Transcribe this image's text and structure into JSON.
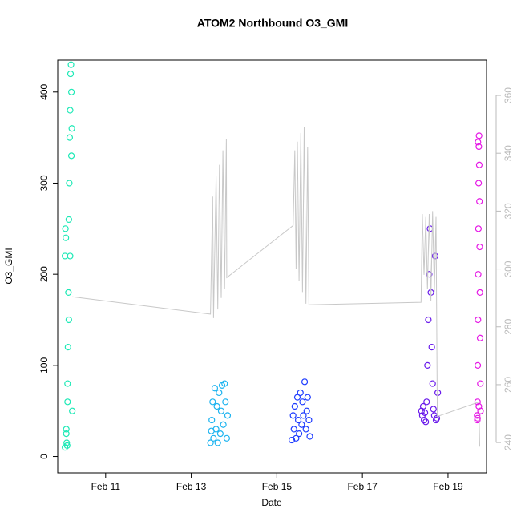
{
  "chart_data": {
    "type": "scatter",
    "title": "ATOM2 Northbound O3_GMI",
    "xlabel": "Date",
    "ylabel": "O3_GMI",
    "xlim": [
      9.88,
      19.9
    ],
    "xticks": [
      {
        "value": 11,
        "label": "Feb 11"
      },
      {
        "value": 13,
        "label": "Feb 13"
      },
      {
        "value": 15,
        "label": "Feb 15"
      },
      {
        "value": 17,
        "label": "Feb 17"
      },
      {
        "value": 19,
        "label": "Feb 19"
      }
    ],
    "ylim": [
      -18,
      435
    ],
    "yticks": [
      0,
      100,
      200,
      300,
      400
    ],
    "y2lim": [
      229.5,
      372.2
    ],
    "y2ticks": [
      240,
      260,
      280,
      300,
      320,
      340,
      360
    ],
    "series": [
      {
        "color": "#1de9b6",
        "x": [
          10.05,
          10.06,
          10.07,
          10.08,
          10.09,
          10.1,
          10.11,
          10.12,
          10.13,
          10.14,
          10.15,
          10.16,
          10.17,
          10.18,
          10.19,
          10.2,
          10.21,
          10.05,
          10.08,
          10.11,
          10.14,
          10.17,
          10.2,
          10.22
        ],
        "values": [
          220,
          250,
          240,
          30,
          15,
          12,
          60,
          120,
          180,
          260,
          300,
          350,
          380,
          420,
          430,
          400,
          360,
          10,
          25,
          80,
          150,
          220,
          330,
          50
        ]
      },
      {
        "color": "#1eb4f0",
        "x": [
          13.45,
          13.48,
          13.5,
          13.52,
          13.55,
          13.58,
          13.6,
          13.62,
          13.65,
          13.68,
          13.7,
          13.72,
          13.75,
          13.78,
          13.8,
          13.83,
          13.85,
          13.47
        ],
        "values": [
          15,
          40,
          60,
          20,
          75,
          30,
          55,
          15,
          70,
          25,
          50,
          78,
          35,
          80,
          60,
          20,
          45,
          28
        ]
      },
      {
        "color": "#1e3cff",
        "x": [
          15.35,
          15.38,
          15.4,
          15.42,
          15.45,
          15.48,
          15.5,
          15.52,
          15.55,
          15.58,
          15.6,
          15.62,
          15.65,
          15.68,
          15.7,
          15.72,
          15.75,
          15.77
        ],
        "values": [
          18,
          45,
          30,
          55,
          20,
          65,
          40,
          25,
          70,
          35,
          60,
          45,
          82,
          30,
          50,
          65,
          40,
          22
        ]
      },
      {
        "color": "#6a1beb",
        "x": [
          18.38,
          18.4,
          18.42,
          18.44,
          18.46,
          18.48,
          18.5,
          18.52,
          18.54,
          18.56,
          18.58,
          18.6,
          18.62,
          18.64,
          18.66,
          18.68,
          18.7,
          18.72,
          18.74,
          18.76
        ],
        "values": [
          50,
          45,
          55,
          40,
          48,
          38,
          60,
          100,
          150,
          200,
          250,
          180,
          120,
          80,
          52,
          45,
          220,
          40,
          42,
          70
        ]
      },
      {
        "color": "#e619e6",
        "x": [
          19.68,
          19.685,
          19.69,
          19.695,
          19.7,
          19.705,
          19.71,
          19.715,
          19.72,
          19.725,
          19.73,
          19.735,
          19.74,
          19.745,
          19.75,
          19.755,
          19.76,
          19.69,
          19.72,
          19.7
        ],
        "values": [
          45,
          40,
          60,
          100,
          150,
          200,
          250,
          300,
          340,
          352,
          320,
          280,
          230,
          180,
          130,
          80,
          50,
          42,
          55,
          345
        ]
      },
      {
        "type": "line",
        "axis": "y2",
        "color": "#c8c8c8",
        "x": [
          10.22,
          13.45,
          13.5,
          13.52,
          13.58,
          13.62,
          13.66,
          13.7,
          13.74,
          13.78,
          13.82,
          13.83,
          15.38,
          15.42,
          15.45,
          15.48,
          15.52,
          15.56,
          15.6,
          15.64,
          15.68,
          15.72,
          15.75,
          18.37,
          18.4,
          18.44,
          18.48,
          18.52,
          18.56,
          18.6,
          18.64,
          18.68,
          18.72,
          18.75,
          19.72,
          19.74
        ],
        "values": [
          290.4,
          284.4,
          325,
          283,
          332,
          286,
          336,
          290,
          341,
          293,
          345,
          297,
          315,
          341,
          300,
          344,
          296,
          347,
          292,
          349,
          288,
          342,
          287.6,
          288.5,
          319,
          298,
          318,
          293,
          319,
          289,
          320,
          292,
          318,
          249,
          254,
          238.6
        ]
      }
    ]
  }
}
